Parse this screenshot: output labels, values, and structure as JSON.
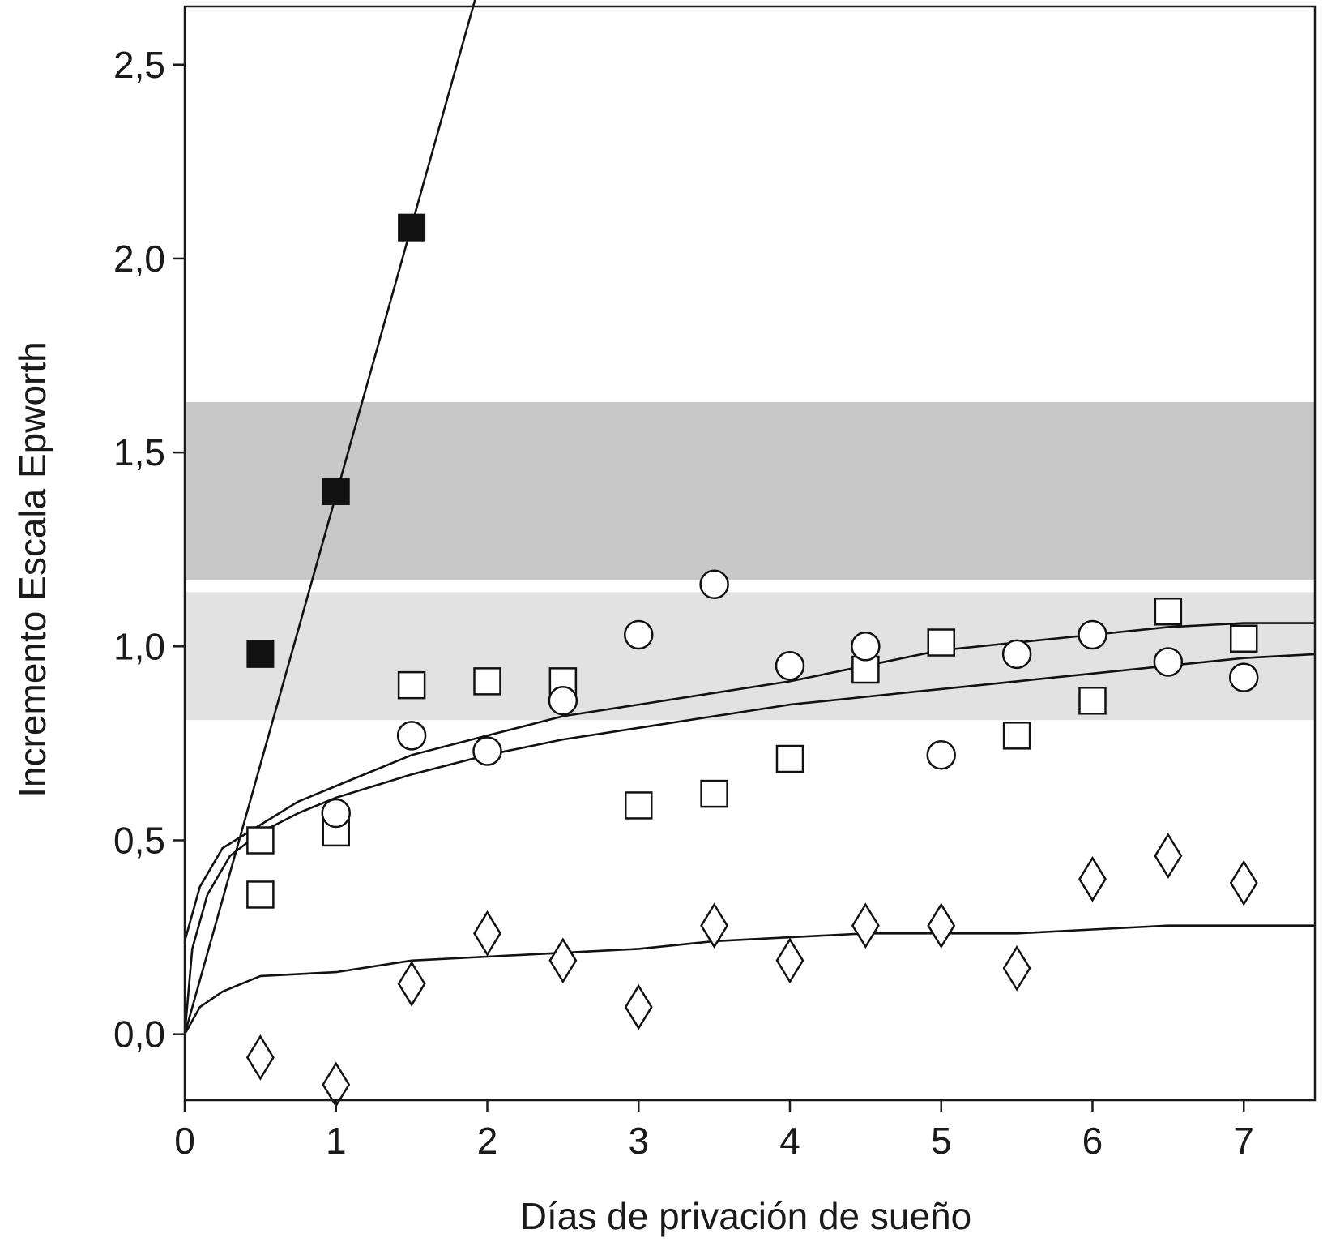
{
  "chart_data": {
    "type": "scatter",
    "title": "",
    "xlabel": "Días de privación de sueño",
    "ylabel": "Incremento Escala Epworth",
    "xlim": [
      0,
      7.47
    ],
    "ylim": [
      -0.17,
      2.65
    ],
    "x_ticks": [
      0,
      1,
      2,
      3,
      4,
      5,
      6,
      7
    ],
    "x_tick_labels": [
      "0",
      "1",
      "2",
      "3",
      "4",
      "5",
      "6",
      "7"
    ],
    "y_ticks": [
      0,
      0.5,
      1.0,
      1.5,
      2.0,
      2.5
    ],
    "y_tick_labels": [
      "0,0",
      "0,5",
      "1,0",
      "1,5",
      "2,0",
      "2,5"
    ],
    "grid": false,
    "legend": "none",
    "bands": [
      {
        "y0": 1.17,
        "y1": 1.63,
        "color": "#c8c8c8"
      },
      {
        "y0": 0.81,
        "y1": 1.14,
        "color": "#e2e2e2"
      }
    ],
    "series": [
      {
        "marker": "filled-square",
        "color": "#111111",
        "points": [
          [
            0.5,
            0.98
          ],
          [
            1.0,
            1.4
          ],
          [
            1.5,
            2.08
          ]
        ],
        "fit": [
          [
            0.0,
            0.0
          ],
          [
            2.0,
            2.78
          ]
        ]
      },
      {
        "marker": "open-square",
        "color": "#111111",
        "points": [
          [
            0.5,
            0.5
          ],
          [
            0.5,
            0.36
          ],
          [
            1.0,
            0.52
          ],
          [
            1.5,
            0.9
          ],
          [
            2.0,
            0.91
          ],
          [
            2.5,
            0.91
          ],
          [
            3.0,
            0.59
          ],
          [
            3.5,
            0.62
          ],
          [
            4.0,
            0.71
          ],
          [
            4.5,
            0.94
          ],
          [
            5.0,
            1.01
          ],
          [
            5.5,
            0.77
          ],
          [
            6.0,
            0.86
          ],
          [
            6.5,
            1.09
          ],
          [
            7.0,
            1.02
          ]
        ],
        "fit": [
          [
            0.0,
            0.24
          ],
          [
            0.1,
            0.38
          ],
          [
            0.25,
            0.48
          ],
          [
            0.5,
            0.54
          ],
          [
            0.75,
            0.6
          ],
          [
            1.0,
            0.64
          ],
          [
            1.5,
            0.72
          ],
          [
            2.0,
            0.77
          ],
          [
            2.5,
            0.82
          ],
          [
            3.0,
            0.85
          ],
          [
            3.5,
            0.88
          ],
          [
            4.0,
            0.91
          ],
          [
            4.5,
            0.95
          ],
          [
            5.0,
            0.99
          ],
          [
            5.5,
            1.01
          ],
          [
            6.0,
            1.03
          ],
          [
            6.5,
            1.05
          ],
          [
            7.0,
            1.06
          ],
          [
            7.47,
            1.06
          ]
        ]
      },
      {
        "marker": "open-circle",
        "color": "#111111",
        "points": [
          [
            1.0,
            0.57
          ],
          [
            1.5,
            0.77
          ],
          [
            2.0,
            0.73
          ],
          [
            2.5,
            0.86
          ],
          [
            3.0,
            1.03
          ],
          [
            3.5,
            1.16
          ],
          [
            4.0,
            0.95
          ],
          [
            4.5,
            1.0
          ],
          [
            5.0,
            0.72
          ],
          [
            5.5,
            0.98
          ],
          [
            6.0,
            1.03
          ],
          [
            6.5,
            0.96
          ],
          [
            7.0,
            0.92
          ]
        ],
        "fit": [
          [
            0.0,
            0.0
          ],
          [
            0.05,
            0.22
          ],
          [
            0.15,
            0.36
          ],
          [
            0.3,
            0.46
          ],
          [
            0.5,
            0.52
          ],
          [
            0.75,
            0.57
          ],
          [
            1.0,
            0.61
          ],
          [
            1.5,
            0.67
          ],
          [
            2.0,
            0.72
          ],
          [
            2.5,
            0.76
          ],
          [
            3.0,
            0.79
          ],
          [
            3.5,
            0.82
          ],
          [
            4.0,
            0.85
          ],
          [
            4.5,
            0.87
          ],
          [
            5.0,
            0.89
          ],
          [
            5.5,
            0.91
          ],
          [
            6.0,
            0.93
          ],
          [
            6.5,
            0.95
          ],
          [
            7.0,
            0.97
          ],
          [
            7.47,
            0.98
          ]
        ]
      },
      {
        "marker": "open-diamond",
        "color": "#111111",
        "points": [
          [
            0.5,
            -0.06
          ],
          [
            1.0,
            -0.13
          ],
          [
            1.5,
            0.13
          ],
          [
            2.0,
            0.26
          ],
          [
            2.5,
            0.19
          ],
          [
            3.0,
            0.07
          ],
          [
            3.5,
            0.28
          ],
          [
            4.0,
            0.19
          ],
          [
            4.5,
            0.28
          ],
          [
            5.0,
            0.28
          ],
          [
            5.5,
            0.17
          ],
          [
            6.0,
            0.4
          ],
          [
            6.5,
            0.46
          ],
          [
            7.0,
            0.39
          ]
        ],
        "fit": [
          [
            0.0,
            0.0
          ],
          [
            0.1,
            0.07
          ],
          [
            0.25,
            0.11
          ],
          [
            0.5,
            0.15
          ],
          [
            1.0,
            0.16
          ],
          [
            1.5,
            0.19
          ],
          [
            2.0,
            0.2
          ],
          [
            2.5,
            0.21
          ],
          [
            3.0,
            0.22
          ],
          [
            3.5,
            0.24
          ],
          [
            4.0,
            0.25
          ],
          [
            4.5,
            0.26
          ],
          [
            5.0,
            0.26
          ],
          [
            5.5,
            0.26
          ],
          [
            6.0,
            0.27
          ],
          [
            6.5,
            0.28
          ],
          [
            7.0,
            0.28
          ],
          [
            7.47,
            0.28
          ]
        ]
      }
    ]
  }
}
